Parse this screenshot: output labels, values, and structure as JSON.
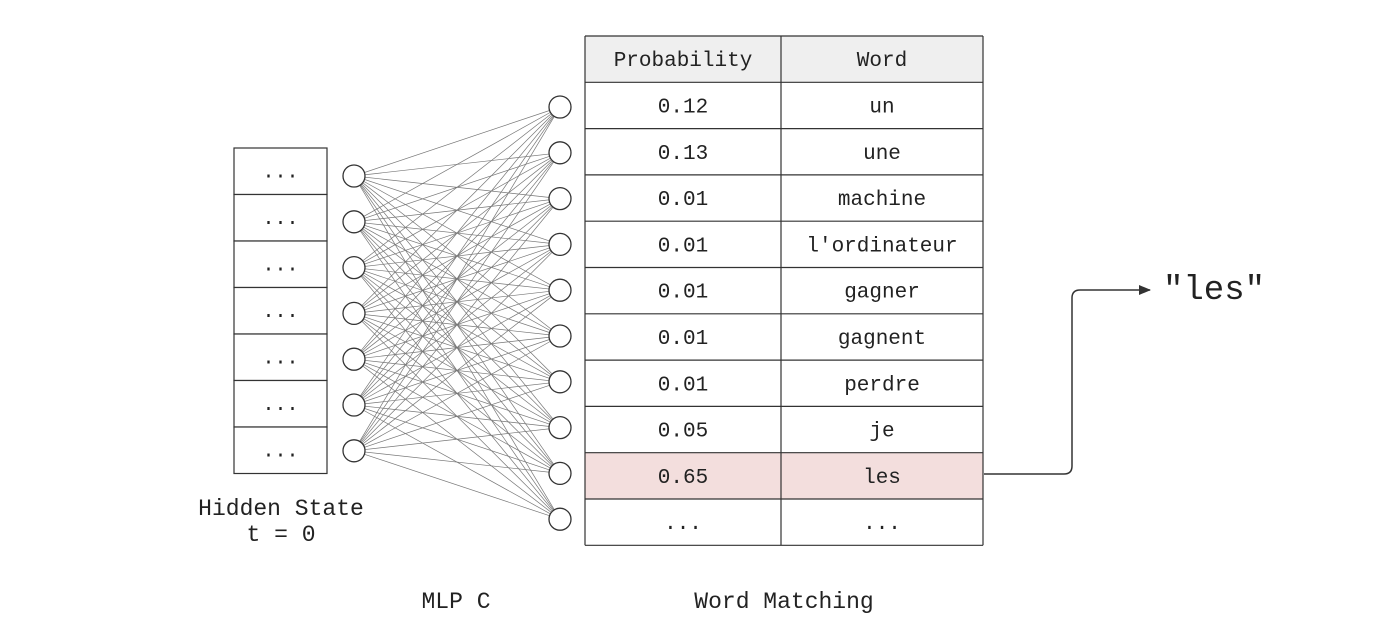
{
  "hidden_state": {
    "cells": [
      "...",
      "...",
      "...",
      "...",
      "...",
      "...",
      "..."
    ],
    "label_line1": "Hidden State",
    "label_line2": "t = 0"
  },
  "mlp": {
    "label": "MLP C",
    "input_nodes": 7,
    "output_nodes": 10
  },
  "table": {
    "label": "Word Matching",
    "headers": [
      "Probability",
      "Word"
    ],
    "rows": [
      {
        "probability": "0.12",
        "word": "un",
        "highlight": false
      },
      {
        "probability": "0.13",
        "word": "une",
        "highlight": false
      },
      {
        "probability": "0.01",
        "word": "machine",
        "highlight": false
      },
      {
        "probability": "0.01",
        "word": "l'ordinateur",
        "highlight": false
      },
      {
        "probability": "0.01",
        "word": "gagner",
        "highlight": false
      },
      {
        "probability": "0.01",
        "word": "gagnent",
        "highlight": false
      },
      {
        "probability": "0.01",
        "word": "perdre",
        "highlight": false
      },
      {
        "probability": "0.05",
        "word": "je",
        "highlight": false
      },
      {
        "probability": "0.65",
        "word": "les",
        "highlight": true
      },
      {
        "probability": "...",
        "word": "...",
        "highlight": false
      }
    ]
  },
  "output": {
    "text": "\"les\""
  },
  "colors": {
    "header_bg": "#efefef",
    "highlight_bg": "#f3dedd",
    "stroke": "#333333",
    "edge": "#777777"
  }
}
